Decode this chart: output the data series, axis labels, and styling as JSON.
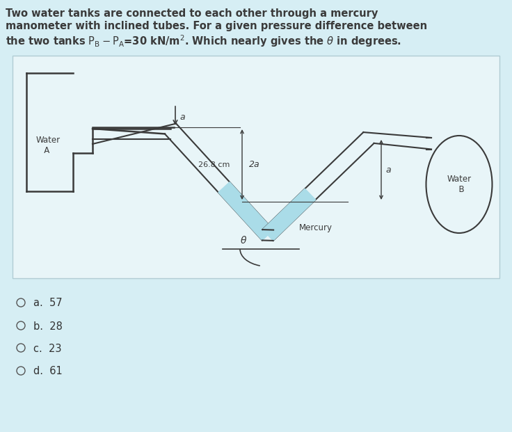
{
  "bg_color": "#d6eef4",
  "diagram_bg": "#e8f5f8",
  "title_color": "#3a3a3a",
  "tube_color": "#3a3a3a",
  "mercury_color": "#aadce8",
  "options": [
    {
      "label": "a.",
      "value": "57"
    },
    {
      "label": "b.",
      "value": "28"
    },
    {
      "label": "c.",
      "value": "23"
    },
    {
      "label": "d.",
      "value": "61"
    }
  ]
}
